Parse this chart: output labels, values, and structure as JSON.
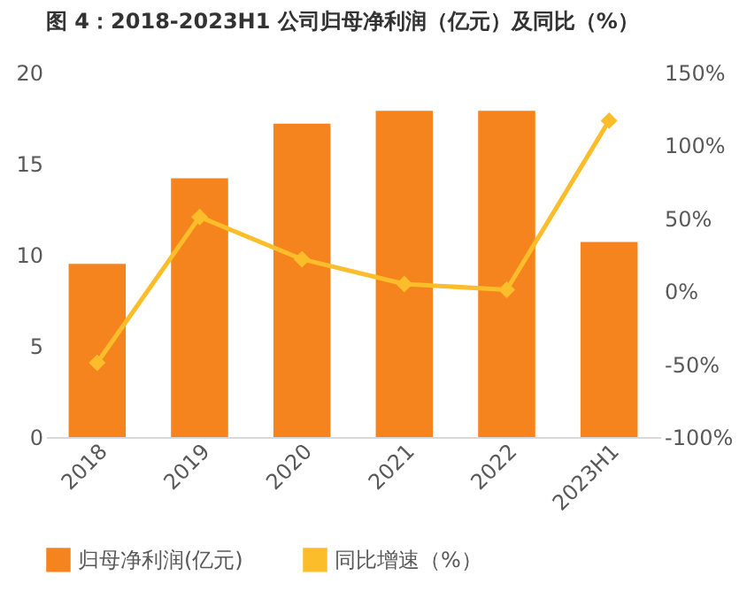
{
  "chart_data": {
    "type": "bar",
    "title": "图 4：2018-2023H1 公司归母净利润（亿元）及同比（%）",
    "categories": [
      "2018",
      "2019",
      "2020",
      "2021",
      "2022",
      "2023H1"
    ],
    "series": [
      {
        "name": "归母净利润(亿元)",
        "color": "#f5841f",
        "values": [
          9.5,
          14.2,
          17.2,
          17.9,
          17.9,
          10.7
        ]
      },
      {
        "name": "同比增速（%）",
        "type": "line",
        "axis": "y2",
        "color": "#fbbd2a",
        "marker": "diamond",
        "values": [
          -49,
          51,
          22,
          5,
          1,
          117
        ]
      }
    ],
    "ylim": [
      0,
      20
    ],
    "yticks": [
      0,
      5,
      10,
      15,
      20
    ],
    "y2lim": [
      -100,
      150
    ],
    "y2ticks": [
      {
        "value": -100,
        "label": "-100%"
      },
      {
        "value": -50,
        "label": "-50%"
      },
      {
        "value": 0,
        "label": "0%"
      },
      {
        "value": 50,
        "label": "50%"
      },
      {
        "value": 100,
        "label": "100%"
      },
      {
        "value": 150,
        "label": "150%"
      }
    ],
    "grid": false,
    "legend": "bottom"
  }
}
